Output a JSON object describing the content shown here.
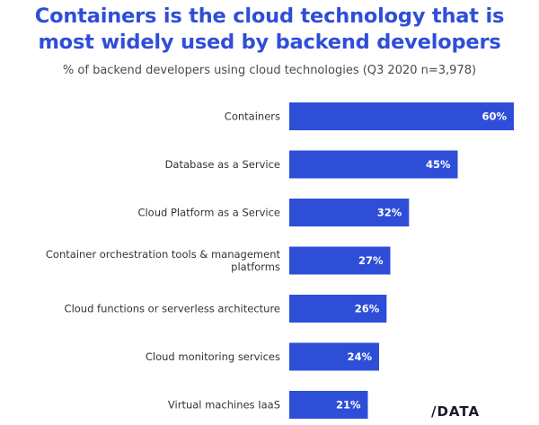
{
  "title_line1": "Containers is the cloud technology that is",
  "title_line2": "most widely used by backend developers",
  "subtitle": "% of backend developers using cloud technologies (Q3 2020 n=3,978)",
  "logo": "/DATA",
  "bar_color": "#2f4ed8",
  "chart_data": {
    "type": "bar",
    "orientation": "horizontal",
    "title": "Containers is the cloud technology that is most widely used by backend developers",
    "subtitle": "% of backend developers using cloud technologies (Q3 2020 n=3,978)",
    "categories": [
      "Containers",
      "Database as a Service",
      "Cloud Platform as a Service",
      "Container orchestration tools & management platforms",
      "Cloud functions or serverless architecture",
      "Cloud monitoring services",
      "Virtual machines IaaS"
    ],
    "category_lines": [
      [
        "Containers"
      ],
      [
        "Database as a Service"
      ],
      [
        "Cloud Platform as a Service"
      ],
      [
        "Container orchestration tools & management",
        "platforms"
      ],
      [
        "Cloud functions or serverless architecture"
      ],
      [
        "Cloud monitoring services"
      ],
      [
        "Virtual machines IaaS"
      ]
    ],
    "values": [
      60,
      45,
      32,
      27,
      26,
      24,
      21
    ],
    "value_labels": [
      "60%",
      "45%",
      "32%",
      "27%",
      "26%",
      "24%",
      "21%"
    ],
    "xlim": [
      0,
      60
    ],
    "grid": false,
    "legend": false
  }
}
